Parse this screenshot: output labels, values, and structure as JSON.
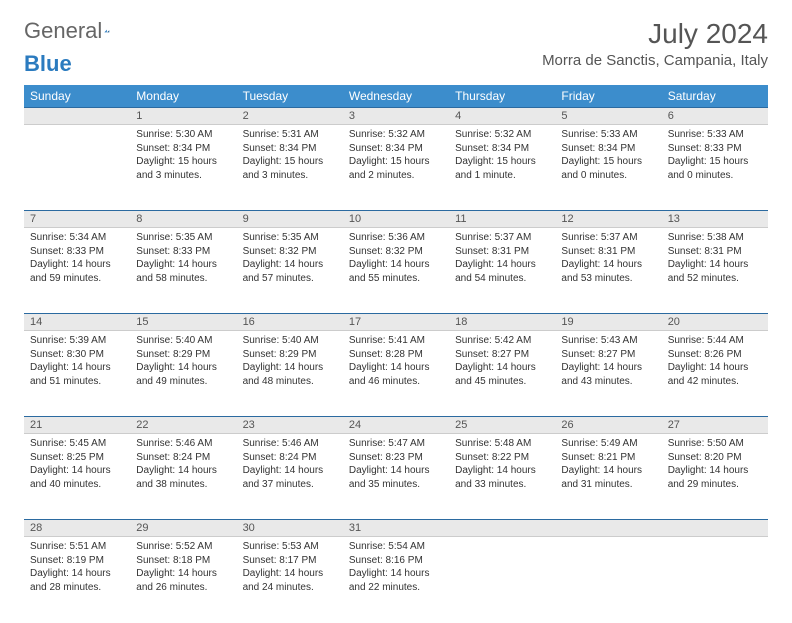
{
  "brand": {
    "part1": "General",
    "part2": "Blue"
  },
  "title": "July 2024",
  "location": "Morra de Sanctis, Campania, Italy",
  "colors": {
    "header_bg": "#3c8dcc",
    "header_text": "#ffffff",
    "daynum_bg": "#e9e9e9",
    "border_top": "#2b6aa0",
    "brand_blue": "#2b7bbf"
  },
  "weekdays": [
    "Sunday",
    "Monday",
    "Tuesday",
    "Wednesday",
    "Thursday",
    "Friday",
    "Saturday"
  ],
  "weeks": [
    {
      "nums": [
        "",
        "1",
        "2",
        "3",
        "4",
        "5",
        "6"
      ],
      "cells": [
        null,
        {
          "sr": "Sunrise: 5:30 AM",
          "ss": "Sunset: 8:34 PM",
          "d1": "Daylight: 15 hours",
          "d2": "and 3 minutes."
        },
        {
          "sr": "Sunrise: 5:31 AM",
          "ss": "Sunset: 8:34 PM",
          "d1": "Daylight: 15 hours",
          "d2": "and 3 minutes."
        },
        {
          "sr": "Sunrise: 5:32 AM",
          "ss": "Sunset: 8:34 PM",
          "d1": "Daylight: 15 hours",
          "d2": "and 2 minutes."
        },
        {
          "sr": "Sunrise: 5:32 AM",
          "ss": "Sunset: 8:34 PM",
          "d1": "Daylight: 15 hours",
          "d2": "and 1 minute."
        },
        {
          "sr": "Sunrise: 5:33 AM",
          "ss": "Sunset: 8:34 PM",
          "d1": "Daylight: 15 hours",
          "d2": "and 0 minutes."
        },
        {
          "sr": "Sunrise: 5:33 AM",
          "ss": "Sunset: 8:33 PM",
          "d1": "Daylight: 15 hours",
          "d2": "and 0 minutes."
        }
      ]
    },
    {
      "nums": [
        "7",
        "8",
        "9",
        "10",
        "11",
        "12",
        "13"
      ],
      "cells": [
        {
          "sr": "Sunrise: 5:34 AM",
          "ss": "Sunset: 8:33 PM",
          "d1": "Daylight: 14 hours",
          "d2": "and 59 minutes."
        },
        {
          "sr": "Sunrise: 5:35 AM",
          "ss": "Sunset: 8:33 PM",
          "d1": "Daylight: 14 hours",
          "d2": "and 58 minutes."
        },
        {
          "sr": "Sunrise: 5:35 AM",
          "ss": "Sunset: 8:32 PM",
          "d1": "Daylight: 14 hours",
          "d2": "and 57 minutes."
        },
        {
          "sr": "Sunrise: 5:36 AM",
          "ss": "Sunset: 8:32 PM",
          "d1": "Daylight: 14 hours",
          "d2": "and 55 minutes."
        },
        {
          "sr": "Sunrise: 5:37 AM",
          "ss": "Sunset: 8:31 PM",
          "d1": "Daylight: 14 hours",
          "d2": "and 54 minutes."
        },
        {
          "sr": "Sunrise: 5:37 AM",
          "ss": "Sunset: 8:31 PM",
          "d1": "Daylight: 14 hours",
          "d2": "and 53 minutes."
        },
        {
          "sr": "Sunrise: 5:38 AM",
          "ss": "Sunset: 8:31 PM",
          "d1": "Daylight: 14 hours",
          "d2": "and 52 minutes."
        }
      ]
    },
    {
      "nums": [
        "14",
        "15",
        "16",
        "17",
        "18",
        "19",
        "20"
      ],
      "cells": [
        {
          "sr": "Sunrise: 5:39 AM",
          "ss": "Sunset: 8:30 PM",
          "d1": "Daylight: 14 hours",
          "d2": "and 51 minutes."
        },
        {
          "sr": "Sunrise: 5:40 AM",
          "ss": "Sunset: 8:29 PM",
          "d1": "Daylight: 14 hours",
          "d2": "and 49 minutes."
        },
        {
          "sr": "Sunrise: 5:40 AM",
          "ss": "Sunset: 8:29 PM",
          "d1": "Daylight: 14 hours",
          "d2": "and 48 minutes."
        },
        {
          "sr": "Sunrise: 5:41 AM",
          "ss": "Sunset: 8:28 PM",
          "d1": "Daylight: 14 hours",
          "d2": "and 46 minutes."
        },
        {
          "sr": "Sunrise: 5:42 AM",
          "ss": "Sunset: 8:27 PM",
          "d1": "Daylight: 14 hours",
          "d2": "and 45 minutes."
        },
        {
          "sr": "Sunrise: 5:43 AM",
          "ss": "Sunset: 8:27 PM",
          "d1": "Daylight: 14 hours",
          "d2": "and 43 minutes."
        },
        {
          "sr": "Sunrise: 5:44 AM",
          "ss": "Sunset: 8:26 PM",
          "d1": "Daylight: 14 hours",
          "d2": "and 42 minutes."
        }
      ]
    },
    {
      "nums": [
        "21",
        "22",
        "23",
        "24",
        "25",
        "26",
        "27"
      ],
      "cells": [
        {
          "sr": "Sunrise: 5:45 AM",
          "ss": "Sunset: 8:25 PM",
          "d1": "Daylight: 14 hours",
          "d2": "and 40 minutes."
        },
        {
          "sr": "Sunrise: 5:46 AM",
          "ss": "Sunset: 8:24 PM",
          "d1": "Daylight: 14 hours",
          "d2": "and 38 minutes."
        },
        {
          "sr": "Sunrise: 5:46 AM",
          "ss": "Sunset: 8:24 PM",
          "d1": "Daylight: 14 hours",
          "d2": "and 37 minutes."
        },
        {
          "sr": "Sunrise: 5:47 AM",
          "ss": "Sunset: 8:23 PM",
          "d1": "Daylight: 14 hours",
          "d2": "and 35 minutes."
        },
        {
          "sr": "Sunrise: 5:48 AM",
          "ss": "Sunset: 8:22 PM",
          "d1": "Daylight: 14 hours",
          "d2": "and 33 minutes."
        },
        {
          "sr": "Sunrise: 5:49 AM",
          "ss": "Sunset: 8:21 PM",
          "d1": "Daylight: 14 hours",
          "d2": "and 31 minutes."
        },
        {
          "sr": "Sunrise: 5:50 AM",
          "ss": "Sunset: 8:20 PM",
          "d1": "Daylight: 14 hours",
          "d2": "and 29 minutes."
        }
      ]
    },
    {
      "nums": [
        "28",
        "29",
        "30",
        "31",
        "",
        "",
        ""
      ],
      "cells": [
        {
          "sr": "Sunrise: 5:51 AM",
          "ss": "Sunset: 8:19 PM",
          "d1": "Daylight: 14 hours",
          "d2": "and 28 minutes."
        },
        {
          "sr": "Sunrise: 5:52 AM",
          "ss": "Sunset: 8:18 PM",
          "d1": "Daylight: 14 hours",
          "d2": "and 26 minutes."
        },
        {
          "sr": "Sunrise: 5:53 AM",
          "ss": "Sunset: 8:17 PM",
          "d1": "Daylight: 14 hours",
          "d2": "and 24 minutes."
        },
        {
          "sr": "Sunrise: 5:54 AM",
          "ss": "Sunset: 8:16 PM",
          "d1": "Daylight: 14 hours",
          "d2": "and 22 minutes."
        },
        null,
        null,
        null
      ]
    }
  ]
}
